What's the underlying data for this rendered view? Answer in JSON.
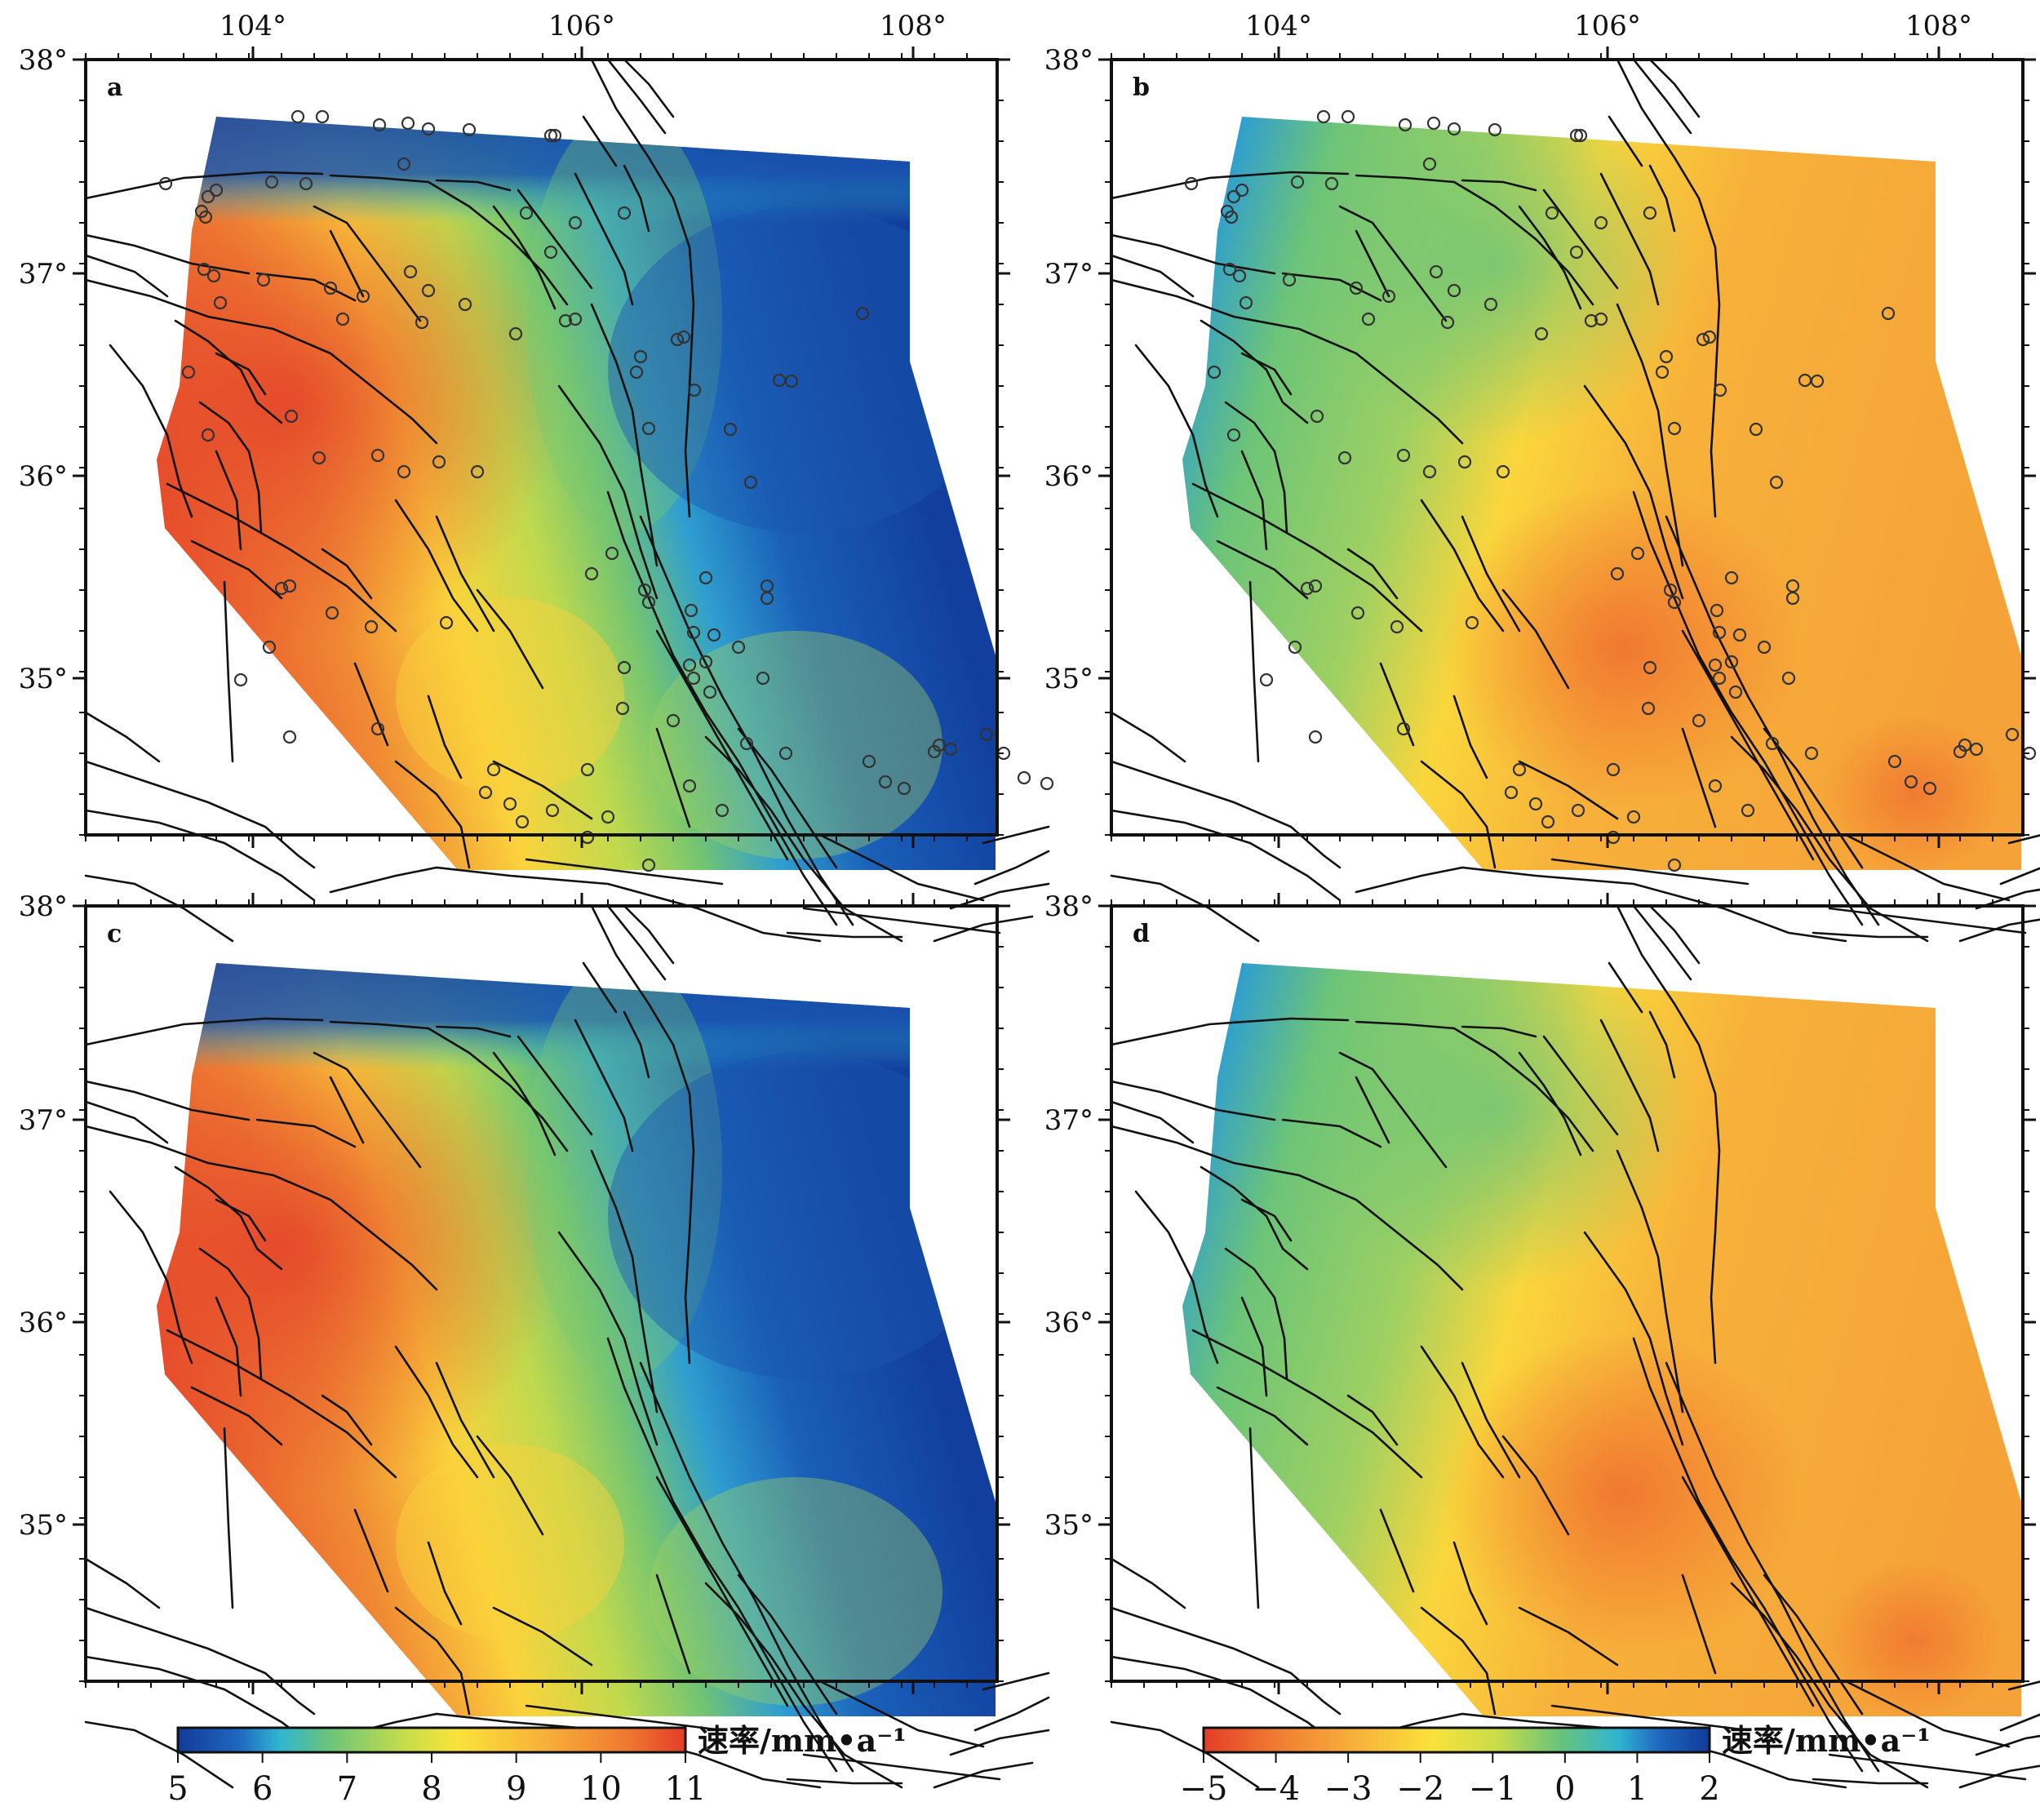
{
  "panels": [
    {
      "id": "a",
      "label": "a",
      "scale": "speed"
    },
    {
      "id": "b",
      "label": "b",
      "scale": "rate"
    },
    {
      "id": "c",
      "label": "c",
      "scale": "speed"
    },
    {
      "id": "d",
      "label": "d",
      "scale": "rate"
    }
  ],
  "axes": {
    "lon_ticks": [
      "104°",
      "106°",
      "108°"
    ],
    "lat_ticks": [
      "38°",
      "37°",
      "36°",
      "35°"
    ]
  },
  "colorbars": [
    {
      "id": "speed",
      "label": "速率/mm•a⁻¹",
      "ticks": [
        "5",
        "6",
        "7",
        "8",
        "9",
        "10",
        "11"
      ],
      "range": [
        5,
        11
      ],
      "colors": [
        "#1a3fa0",
        "#2a8fd0",
        "#7cc870",
        "#f4e43a",
        "#f7a23a",
        "#e8402a"
      ]
    },
    {
      "id": "rate",
      "label": "速率/mm•a⁻¹",
      "ticks": [
        "−5",
        "−4",
        "−3",
        "−2",
        "−1",
        "0",
        "1",
        "2"
      ],
      "range": [
        -5,
        2
      ],
      "colors": [
        "#e8402a",
        "#f7a23a",
        "#f4e43a",
        "#7cc870",
        "#2a8fd0",
        "#1a3fa0"
      ]
    }
  ]
}
